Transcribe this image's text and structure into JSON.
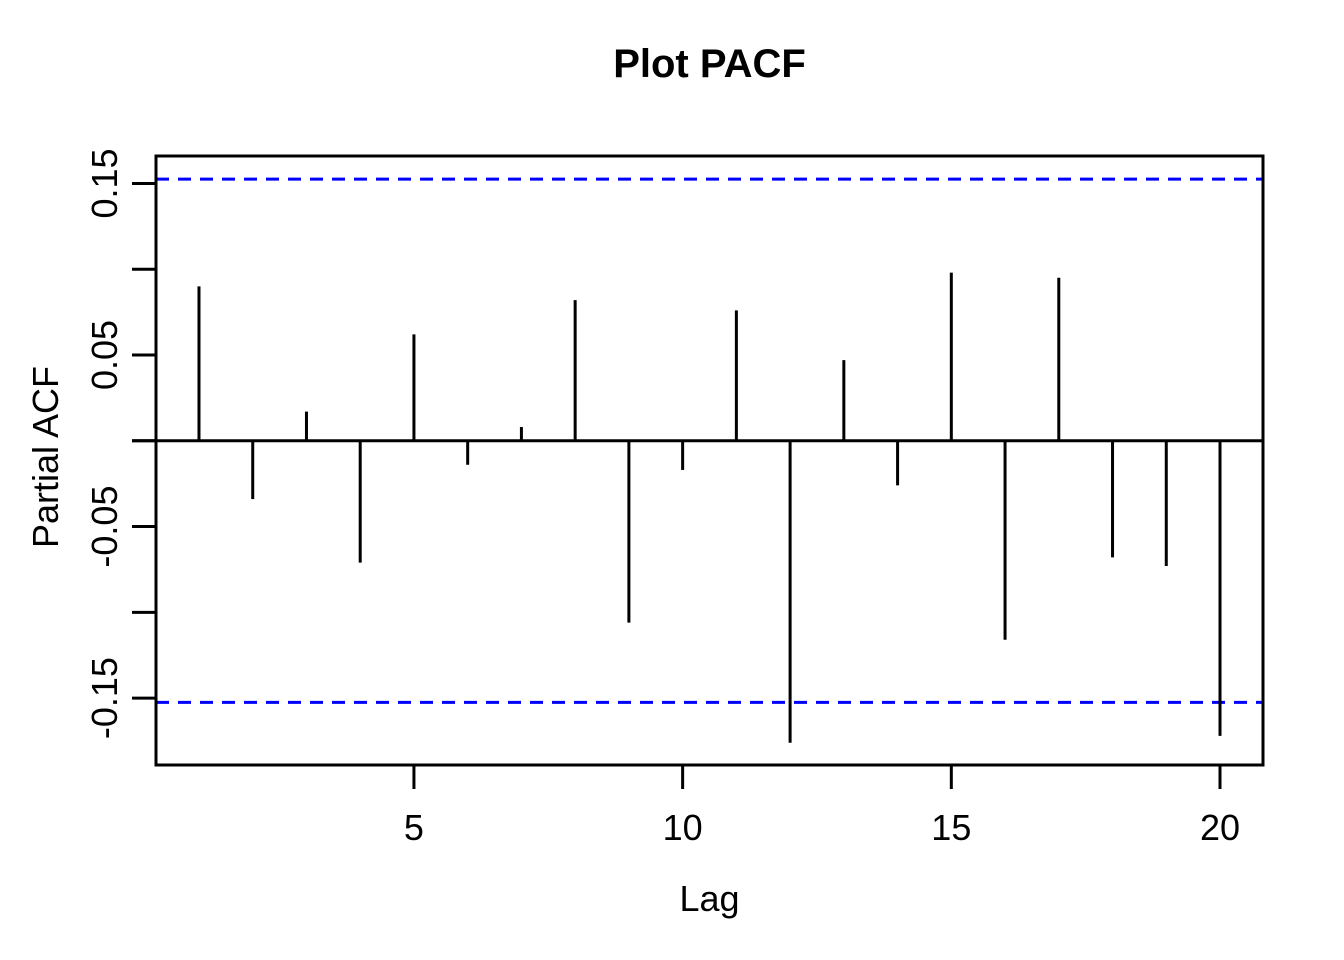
{
  "chart_data": {
    "type": "bar",
    "subtype": "stem-pacf",
    "title": "Plot PACF",
    "xlabel": "Lag",
    "ylabel": "Partial ACF",
    "x": [
      1,
      2,
      3,
      4,
      5,
      6,
      7,
      8,
      9,
      10,
      11,
      12,
      13,
      14,
      15,
      16,
      17,
      18,
      19,
      20
    ],
    "values": [
      0.09,
      -0.034,
      0.017,
      -0.071,
      0.062,
      -0.014,
      0.008,
      0.082,
      -0.106,
      -0.017,
      0.076,
      -0.176,
      0.047,
      -0.026,
      0.098,
      -0.116,
      0.095,
      -0.068,
      -0.073,
      -0.172
    ],
    "confidence_bound_upper": 0.1525,
    "confidence_bound_lower": -0.1525,
    "x_ticks": [
      5,
      10,
      15,
      20
    ],
    "x_tick_labels": [
      "5",
      "10",
      "15",
      "20"
    ],
    "y_ticks_all": [
      0.15,
      0.1,
      0.05,
      0,
      -0.05,
      -0.1,
      -0.15
    ],
    "y_ticks_labeled": [
      0.15,
      0.05,
      -0.05,
      -0.15
    ],
    "y_tick_labels": [
      "0.15",
      "0.05",
      "-0.05",
      "-0.15"
    ],
    "xlim": [
      0.2,
      20.8
    ],
    "ylim": [
      -0.189,
      0.166
    ],
    "grid": false,
    "legend": null,
    "zero_line": 0,
    "ci_line_style": "dashed",
    "colors": {
      "stem": "#000000",
      "axis": "#000000",
      "text": "#000000",
      "confidence_line": "#0000FF",
      "background": "#FFFFFF"
    }
  }
}
